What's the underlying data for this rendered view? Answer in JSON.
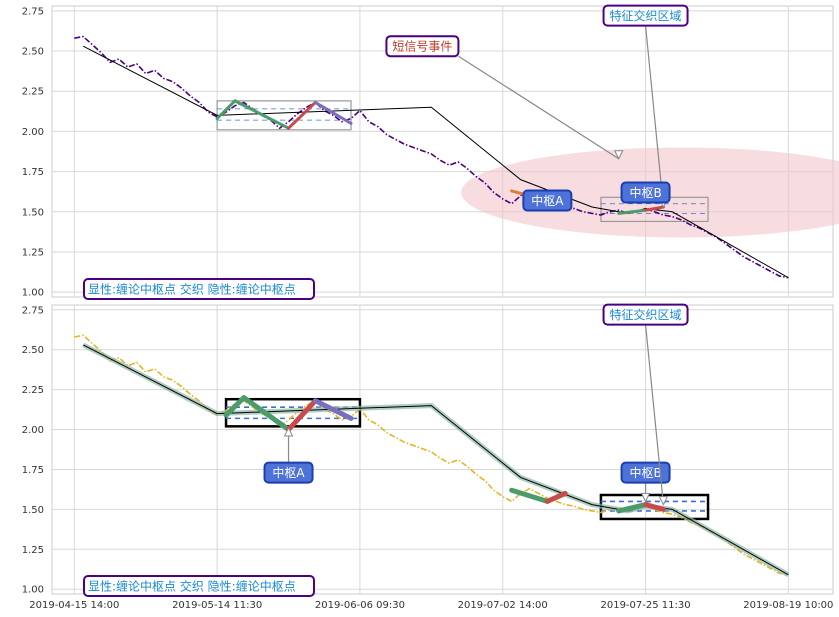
{
  "chart_data": [
    {
      "type": "line",
      "panel": "top",
      "ylim": [
        0.97,
        2.78
      ],
      "yticks": [
        "2.75",
        "2.50",
        "2.25",
        "2.00",
        "1.75",
        "1.50",
        "1.25",
        "1.00"
      ],
      "ytick_values": [
        2.75,
        2.5,
        2.25,
        2.0,
        1.75,
        1.5,
        1.25,
        1.0
      ],
      "grid": true,
      "series": [
        {
          "color": "#4b0082",
          "style": "dash-dot",
          "x": [
            0,
            1,
            2,
            3,
            4,
            5,
            6,
            7,
            8,
            9,
            10,
            11,
            12,
            13,
            14,
            15,
            16,
            17,
            18,
            19,
            20,
            21,
            22,
            23,
            24,
            25,
            26,
            27,
            28,
            29,
            30,
            31,
            32,
            33,
            34,
            35,
            36,
            37,
            38,
            39,
            40,
            41,
            42,
            43,
            44,
            45,
            46,
            47,
            48,
            49,
            50,
            51,
            52,
            53,
            54,
            55,
            56,
            57,
            58,
            59,
            60,
            61,
            62,
            63,
            64,
            65,
            66,
            67,
            68,
            69,
            70,
            71,
            72,
            73,
            74,
            75,
            76,
            77,
            78,
            79,
            80
          ],
          "y": [
            2.58,
            2.59,
            2.54,
            2.49,
            2.43,
            2.45,
            2.4,
            2.42,
            2.36,
            2.38,
            2.33,
            2.31,
            2.27,
            2.22,
            2.18,
            2.12,
            2.09,
            2.12,
            2.16,
            2.18,
            2.14,
            2.1,
            2.07,
            2.02,
            2.06,
            2.11,
            2.15,
            2.18,
            2.13,
            2.1,
            2.06,
            2.08,
            2.13,
            2.06,
            2.03,
            1.98,
            1.95,
            1.92,
            1.9,
            1.88,
            1.86,
            1.82,
            1.79,
            1.81,
            1.77,
            1.72,
            1.68,
            1.62,
            1.58,
            1.55,
            1.6,
            1.63,
            1.6,
            1.57,
            1.55,
            1.53,
            1.52,
            1.5,
            1.49,
            1.48,
            1.5,
            1.51,
            1.49,
            1.5,
            1.52,
            1.5,
            1.48,
            1.47,
            1.45,
            1.42,
            1.4,
            1.37,
            1.34,
            1.3,
            1.26,
            1.22,
            1.19,
            1.16,
            1.13,
            1.1,
            1.09
          ]
        }
      ],
      "trend": {
        "x": [
          1,
          16,
          40,
          50,
          58,
          62,
          64,
          67,
          80
        ],
        "y": [
          2.53,
          2.1,
          2.15,
          1.7,
          1.53,
          1.49,
          1.52,
          1.5,
          1.09
        ]
      },
      "zones": [
        {
          "x0": 16,
          "x1": 31,
          "y0": 2.01,
          "y1": 2.19,
          "mid0": 2.07,
          "mid1": 2.14
        },
        {
          "x0": 59,
          "x1": 71,
          "y0": 1.44,
          "y1": 1.59,
          "mid0": 1.49,
          "mid1": 1.55
        }
      ],
      "strokes": [
        {
          "x": [
            16,
            18
          ],
          "y": [
            2.08,
            2.19
          ],
          "color": "#4a9d6b"
        },
        {
          "x": [
            18,
            24
          ],
          "y": [
            2.19,
            2.02
          ],
          "color": "#4a9d6b"
        },
        {
          "x": [
            24,
            27
          ],
          "y": [
            2.02,
            2.18
          ],
          "color": "#c84b4b"
        },
        {
          "x": [
            27,
            31
          ],
          "y": [
            2.18,
            2.05
          ],
          "color": "#7b6fbd"
        },
        {
          "x": [
            49,
            53
          ],
          "y": [
            1.63,
            1.57
          ],
          "color": "#e07b39"
        },
        {
          "x": [
            61,
            64
          ],
          "y": [
            1.49,
            1.51
          ],
          "color": "#4a9d6b"
        },
        {
          "x": [
            64,
            66
          ],
          "y": [
            1.51,
            1.53
          ],
          "color": "#c84b4b"
        }
      ],
      "annotations": [
        {
          "text": "短信号事件",
          "tx": 39,
          "ty": 2.53,
          "ax": 61,
          "ay": 1.83,
          "text_color": "#c0392b",
          "box_color": "#4b0082",
          "bg": "#ffffff"
        },
        {
          "text": "特征交织区域",
          "tx": 64,
          "ty": 2.72,
          "ax": 66,
          "ay": 1.53,
          "text_color": "#1a8ad4",
          "box_color": "#4b0082",
          "bg": "#ffffff"
        },
        {
          "text": "中枢A",
          "tx": 53,
          "ty": 1.57,
          "text_color": "#ffffff",
          "box_color": "#1b3fae",
          "bg": "#4d72d8"
        },
        {
          "text": "中枢B",
          "tx": 64,
          "ty": 1.62,
          "text_color": "#ffffff",
          "box_color": "#1b3fae",
          "bg": "#4d72d8"
        }
      ],
      "legend_text": "显性:缠论中枢点 交织 隐性:缠论中枢点",
      "legend_position": "bottom-left"
    },
    {
      "type": "line",
      "panel": "bottom",
      "ylim": [
        0.97,
        2.78
      ],
      "yticks": [
        "2.75",
        "2.50",
        "2.25",
        "2.00",
        "1.75",
        "1.50",
        "1.25",
        "1.00"
      ],
      "ytick_values": [
        2.75,
        2.5,
        2.25,
        2.0,
        1.75,
        1.5,
        1.25,
        1.0
      ],
      "grid": true,
      "xticks": [
        "2019-04-15 14:00",
        "2019-05-14 11:30",
        "2019-06-06 09:30",
        "2019-07-02 14:00",
        "2019-07-25 11:30",
        "2019-08-19 10:00"
      ],
      "xtick_values": [
        0,
        16,
        32,
        48,
        64,
        80
      ],
      "series": [
        {
          "color": "#e6b422",
          "style": "dash-dot",
          "x": [
            0,
            1,
            2,
            3,
            4,
            5,
            6,
            7,
            8,
            9,
            10,
            11,
            12,
            13,
            14,
            15,
            16,
            17,
            18,
            19,
            20,
            21,
            22,
            23,
            24,
            25,
            26,
            27,
            28,
            29,
            30,
            31,
            32,
            33,
            34,
            35,
            36,
            37,
            38,
            39,
            40,
            41,
            42,
            43,
            44,
            45,
            46,
            47,
            48,
            49,
            50,
            51,
            52,
            53,
            54,
            55,
            56,
            57,
            58,
            59,
            60,
            61,
            62,
            63,
            64,
            65,
            66,
            67,
            68,
            69,
            70,
            71,
            72,
            73,
            74,
            75,
            76,
            77,
            78,
            79,
            80
          ],
          "y": [
            2.58,
            2.59,
            2.54,
            2.49,
            2.43,
            2.45,
            2.4,
            2.42,
            2.36,
            2.38,
            2.33,
            2.31,
            2.27,
            2.22,
            2.18,
            2.12,
            2.09,
            2.12,
            2.16,
            2.18,
            2.14,
            2.1,
            2.07,
            2.02,
            2.06,
            2.11,
            2.15,
            2.18,
            2.13,
            2.1,
            2.06,
            2.08,
            2.13,
            2.06,
            2.03,
            1.98,
            1.95,
            1.92,
            1.9,
            1.88,
            1.86,
            1.82,
            1.79,
            1.81,
            1.77,
            1.72,
            1.68,
            1.62,
            1.58,
            1.55,
            1.6,
            1.63,
            1.6,
            1.57,
            1.55,
            1.53,
            1.52,
            1.5,
            1.49,
            1.48,
            1.5,
            1.51,
            1.49,
            1.5,
            1.52,
            1.5,
            1.48,
            1.47,
            1.45,
            1.42,
            1.4,
            1.37,
            1.34,
            1.3,
            1.26,
            1.22,
            1.19,
            1.16,
            1.13,
            1.1,
            1.09
          ]
        }
      ],
      "trend": {
        "x": [
          1,
          16,
          40,
          50,
          58,
          62,
          64,
          67,
          80
        ],
        "y": [
          2.53,
          2.1,
          2.15,
          1.7,
          1.53,
          1.49,
          1.52,
          1.5,
          1.09
        ]
      },
      "zones": [
        {
          "x0": 17,
          "x1": 32,
          "y0": 2.02,
          "y1": 2.19,
          "mid0": 2.07,
          "mid1": 2.14
        },
        {
          "x0": 59,
          "x1": 71,
          "y0": 1.44,
          "y1": 1.59,
          "mid0": 1.49,
          "mid1": 1.55
        }
      ],
      "strokes": [
        {
          "x": [
            17,
            19
          ],
          "y": [
            2.09,
            2.2
          ],
          "color": "#4a9d6b"
        },
        {
          "x": [
            19,
            24
          ],
          "y": [
            2.2,
            2.0
          ],
          "color": "#4a9d6b"
        },
        {
          "x": [
            24,
            27
          ],
          "y": [
            2.0,
            2.18
          ],
          "color": "#c84b4b"
        },
        {
          "x": [
            27,
            31
          ],
          "y": [
            2.18,
            2.07
          ],
          "color": "#7b6fbd"
        },
        {
          "x": [
            49,
            53
          ],
          "y": [
            1.62,
            1.55
          ],
          "color": "#4a9d6b"
        },
        {
          "x": [
            53,
            55
          ],
          "y": [
            1.55,
            1.6
          ],
          "color": "#c84b4b"
        },
        {
          "x": [
            61,
            64
          ],
          "y": [
            1.49,
            1.53
          ],
          "color": "#4a9d6b"
        },
        {
          "x": [
            64,
            66
          ],
          "y": [
            1.53,
            1.5
          ],
          "color": "#c84b4b"
        }
      ],
      "annotations": [
        {
          "text": "中枢A",
          "tx": 24,
          "ty": 1.73,
          "ax": 24,
          "ay": 2.01,
          "text_color": "#ffffff",
          "box_color": "#1b3fae",
          "bg": "#4d72d8"
        },
        {
          "text": "中枢B",
          "tx": 64,
          "ty": 1.73,
          "ax": 64,
          "ay": 1.55,
          "text_color": "#ffffff",
          "box_color": "#1b3fae",
          "bg": "#4d72d8"
        },
        {
          "text": "特征交织区域",
          "tx": 64,
          "ty": 2.72,
          "ax": 66,
          "ay": 1.53,
          "text_color": "#1a8ad4",
          "box_color": "#4b0082",
          "bg": "#ffffff"
        }
      ],
      "legend_text": "显性:缠论中枢点 交织 隐性:缠论中枢点",
      "legend_position": "bottom-left"
    }
  ],
  "colors": {
    "grid": "#d8d8d8",
    "axis": "#cccccc",
    "trend": "#000000",
    "ellipse": "#f2c6cb"
  }
}
